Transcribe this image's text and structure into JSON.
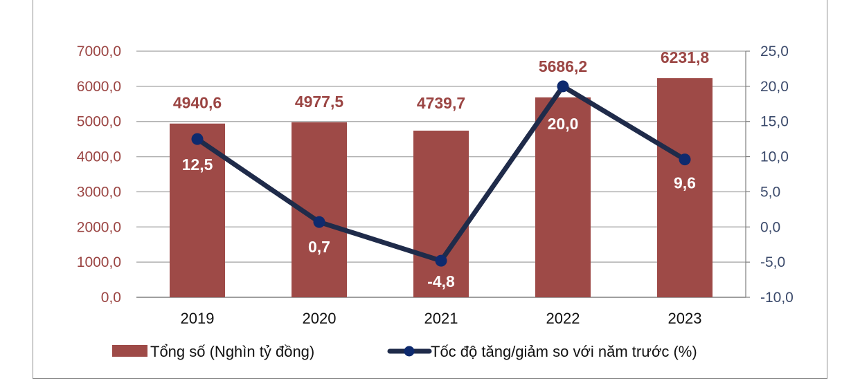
{
  "chart_data": {
    "type": "bar+line",
    "categories": [
      "2019",
      "2020",
      "2021",
      "2022",
      "2023"
    ],
    "series": [
      {
        "name": "Tổng số (Nghìn tỷ đồng)",
        "type": "bar",
        "axis": "left",
        "values": [
          4940.6,
          4977.5,
          4739.7,
          5686.2,
          6231.8
        ],
        "labels": [
          "4940,6",
          "4977,5",
          "4739,7",
          "5686,2",
          "6231,8"
        ],
        "color": "#9e4a47"
      },
      {
        "name": "Tốc độ tăng/giảm so với năm trước (%)",
        "type": "line",
        "axis": "right",
        "values": [
          12.5,
          0.7,
          -4.8,
          20.0,
          9.6
        ],
        "labels": [
          "12,5",
          "0,7",
          "-4,8",
          "20,0",
          "9,6"
        ],
        "color": "#1f2b4a",
        "marker_color": "#0e2a6e"
      }
    ],
    "y_left": {
      "lim": [
        0,
        7000
      ],
      "ticks": [
        "0,0",
        "1000,0",
        "2000,0",
        "3000,0",
        "4000,0",
        "5000,0",
        "6000,0",
        "7000,0"
      ]
    },
    "y_right": {
      "lim": [
        -10,
        25
      ],
      "ticks": [
        "-10,0",
        "-5,0",
        "0,0",
        "5,0",
        "10,0",
        "15,0",
        "20,0",
        "25,0"
      ]
    },
    "grid": true,
    "legend": "bottom"
  }
}
